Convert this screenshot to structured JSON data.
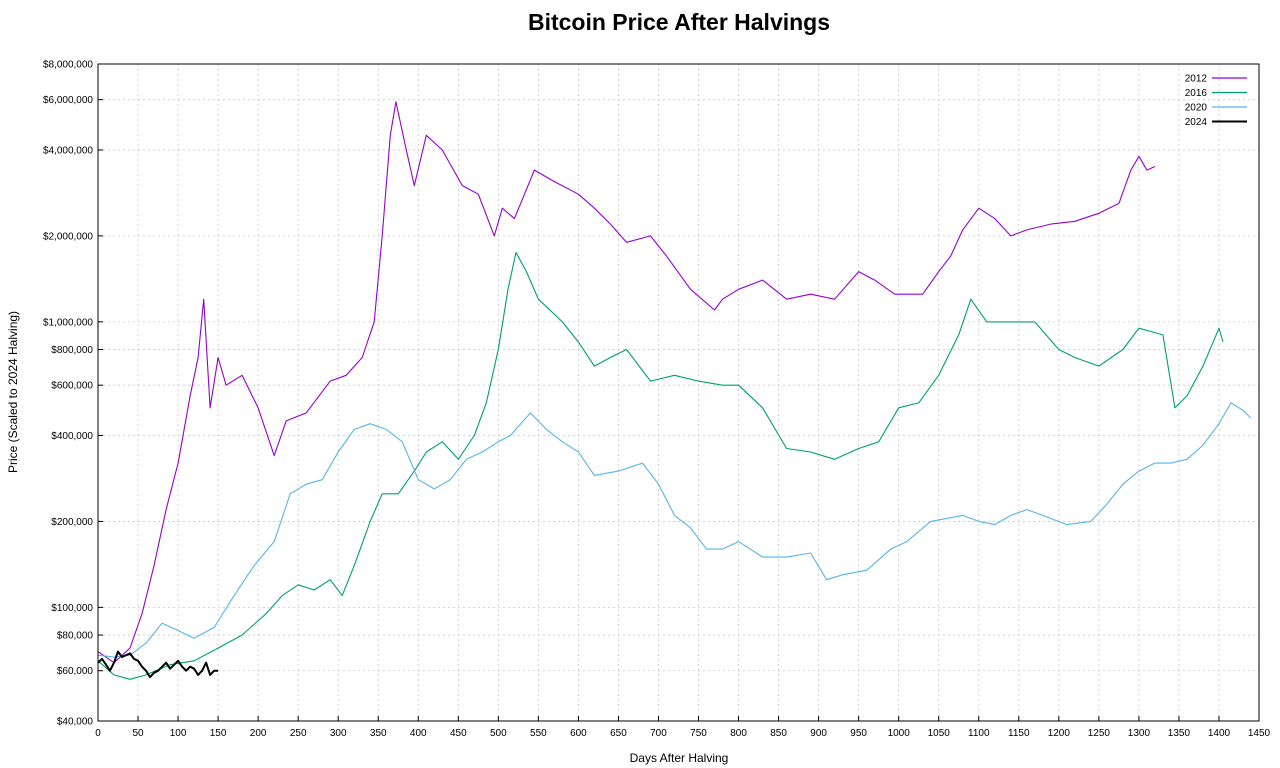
{
  "chart_data": {
    "type": "line",
    "title": "Bitcoin Price After Halvings",
    "xlabel": "Days After Halving",
    "ylabel": "Price (Scaled to 2024 Halving)",
    "y_scale": "log",
    "xlim": [
      0,
      1450
    ],
    "ylim": [
      40000,
      8000000
    ],
    "x_ticks": [
      0,
      50,
      100,
      150,
      200,
      250,
      300,
      350,
      400,
      450,
      500,
      550,
      600,
      650,
      700,
      750,
      800,
      850,
      900,
      950,
      1000,
      1050,
      1100,
      1150,
      1200,
      1250,
      1300,
      1350,
      1400,
      1450
    ],
    "y_ticks": [
      {
        "value": 40000,
        "label": "$40,000"
      },
      {
        "value": 60000,
        "label": "$60,000"
      },
      {
        "value": 80000,
        "label": "$80,000"
      },
      {
        "value": 100000,
        "label": "$100,000"
      },
      {
        "value": 200000,
        "label": "$200,000"
      },
      {
        "value": 400000,
        "label": "$400,000"
      },
      {
        "value": 600000,
        "label": "$600,000"
      },
      {
        "value": 800000,
        "label": "$800,000"
      },
      {
        "value": 1000000,
        "label": "$1,000,000"
      },
      {
        "value": 2000000,
        "label": "$2,000,000"
      },
      {
        "value": 4000000,
        "label": "$4,000,000"
      },
      {
        "value": 6000000,
        "label": "$6,000,000"
      },
      {
        "value": 8000000,
        "label": "$8,000,000"
      }
    ],
    "grid": true,
    "legend_position": "top-right",
    "series": [
      {
        "name": "2012",
        "color": "#9400d3",
        "points": [
          [
            0,
            70000
          ],
          [
            20,
            64000
          ],
          [
            40,
            72000
          ],
          [
            55,
            95000
          ],
          [
            70,
            140000
          ],
          [
            85,
            220000
          ],
          [
            100,
            320000
          ],
          [
            115,
            550000
          ],
          [
            125,
            750000
          ],
          [
            132,
            1200000
          ],
          [
            140,
            500000
          ],
          [
            150,
            750000
          ],
          [
            160,
            600000
          ],
          [
            180,
            650000
          ],
          [
            200,
            500000
          ],
          [
            220,
            340000
          ],
          [
            235,
            450000
          ],
          [
            260,
            480000
          ],
          [
            290,
            620000
          ],
          [
            310,
            650000
          ],
          [
            330,
            750000
          ],
          [
            345,
            1000000
          ],
          [
            355,
            2000000
          ],
          [
            365,
            4500000
          ],
          [
            372,
            5900000
          ],
          [
            385,
            4000000
          ],
          [
            395,
            3000000
          ],
          [
            410,
            4500000
          ],
          [
            430,
            4000000
          ],
          [
            455,
            3000000
          ],
          [
            475,
            2800000
          ],
          [
            495,
            2000000
          ],
          [
            505,
            2500000
          ],
          [
            520,
            2300000
          ],
          [
            545,
            3400000
          ],
          [
            570,
            3100000
          ],
          [
            600,
            2800000
          ],
          [
            620,
            2500000
          ],
          [
            640,
            2200000
          ],
          [
            660,
            1900000
          ],
          [
            690,
            2000000
          ],
          [
            710,
            1700000
          ],
          [
            740,
            1300000
          ],
          [
            770,
            1100000
          ],
          [
            780,
            1200000
          ],
          [
            800,
            1300000
          ],
          [
            830,
            1400000
          ],
          [
            860,
            1200000
          ],
          [
            890,
            1250000
          ],
          [
            920,
            1200000
          ],
          [
            950,
            1500000
          ],
          [
            970,
            1400000
          ],
          [
            995,
            1250000
          ],
          [
            1030,
            1250000
          ],
          [
            1050,
            1500000
          ],
          [
            1065,
            1700000
          ],
          [
            1080,
            2100000
          ],
          [
            1100,
            2500000
          ],
          [
            1120,
            2300000
          ],
          [
            1140,
            2000000
          ],
          [
            1160,
            2100000
          ],
          [
            1190,
            2200000
          ],
          [
            1220,
            2250000
          ],
          [
            1250,
            2400000
          ],
          [
            1275,
            2600000
          ],
          [
            1290,
            3400000
          ],
          [
            1300,
            3800000
          ],
          [
            1310,
            3400000
          ],
          [
            1320,
            3500000
          ]
        ]
      },
      {
        "name": "2016",
        "color": "#009e73",
        "points": [
          [
            0,
            65000
          ],
          [
            20,
            58000
          ],
          [
            40,
            56000
          ],
          [
            60,
            58000
          ],
          [
            90,
            63000
          ],
          [
            120,
            65000
          ],
          [
            150,
            72000
          ],
          [
            180,
            80000
          ],
          [
            210,
            95000
          ],
          [
            230,
            110000
          ],
          [
            250,
            120000
          ],
          [
            270,
            115000
          ],
          [
            290,
            125000
          ],
          [
            305,
            110000
          ],
          [
            320,
            140000
          ],
          [
            340,
            200000
          ],
          [
            355,
            250000
          ],
          [
            375,
            250000
          ],
          [
            395,
            300000
          ],
          [
            410,
            350000
          ],
          [
            430,
            380000
          ],
          [
            450,
            330000
          ],
          [
            470,
            400000
          ],
          [
            485,
            520000
          ],
          [
            500,
            800000
          ],
          [
            512,
            1300000
          ],
          [
            522,
            1750000
          ],
          [
            535,
            1500000
          ],
          [
            550,
            1200000
          ],
          [
            580,
            1000000
          ],
          [
            600,
            850000
          ],
          [
            620,
            700000
          ],
          [
            640,
            750000
          ],
          [
            660,
            800000
          ],
          [
            690,
            620000
          ],
          [
            720,
            650000
          ],
          [
            750,
            620000
          ],
          [
            780,
            600000
          ],
          [
            800,
            600000
          ],
          [
            830,
            500000
          ],
          [
            860,
            360000
          ],
          [
            890,
            350000
          ],
          [
            920,
            330000
          ],
          [
            950,
            360000
          ],
          [
            975,
            380000
          ],
          [
            1000,
            500000
          ],
          [
            1025,
            520000
          ],
          [
            1050,
            650000
          ],
          [
            1075,
            900000
          ],
          [
            1090,
            1200000
          ],
          [
            1110,
            1000000
          ],
          [
            1140,
            1000000
          ],
          [
            1170,
            1000000
          ],
          [
            1200,
            800000
          ],
          [
            1220,
            750000
          ],
          [
            1250,
            700000
          ],
          [
            1280,
            800000
          ],
          [
            1300,
            950000
          ],
          [
            1330,
            900000
          ],
          [
            1345,
            500000
          ],
          [
            1360,
            550000
          ],
          [
            1380,
            700000
          ],
          [
            1400,
            950000
          ],
          [
            1405,
            850000
          ]
        ]
      },
      {
        "name": "2020",
        "color": "#56b4e9",
        "points": [
          [
            0,
            68000
          ],
          [
            20,
            67000
          ],
          [
            40,
            68000
          ],
          [
            60,
            75000
          ],
          [
            80,
            88000
          ],
          [
            100,
            83000
          ],
          [
            120,
            78000
          ],
          [
            145,
            85000
          ],
          [
            170,
            110000
          ],
          [
            195,
            140000
          ],
          [
            220,
            170000
          ],
          [
            240,
            250000
          ],
          [
            260,
            270000
          ],
          [
            280,
            280000
          ],
          [
            300,
            350000
          ],
          [
            320,
            420000
          ],
          [
            340,
            440000
          ],
          [
            360,
            420000
          ],
          [
            380,
            380000
          ],
          [
            400,
            280000
          ],
          [
            420,
            260000
          ],
          [
            440,
            280000
          ],
          [
            460,
            330000
          ],
          [
            480,
            350000
          ],
          [
            500,
            380000
          ],
          [
            515,
            400000
          ],
          [
            540,
            480000
          ],
          [
            560,
            420000
          ],
          [
            580,
            380000
          ],
          [
            600,
            350000
          ],
          [
            620,
            290000
          ],
          [
            650,
            300000
          ],
          [
            680,
            320000
          ],
          [
            700,
            270000
          ],
          [
            720,
            210000
          ],
          [
            740,
            190000
          ],
          [
            760,
            160000
          ],
          [
            780,
            160000
          ],
          [
            800,
            170000
          ],
          [
            830,
            150000
          ],
          [
            860,
            150000
          ],
          [
            890,
            155000
          ],
          [
            910,
            125000
          ],
          [
            930,
            130000
          ],
          [
            960,
            135000
          ],
          [
            990,
            160000
          ],
          [
            1010,
            170000
          ],
          [
            1040,
            200000
          ],
          [
            1060,
            205000
          ],
          [
            1080,
            210000
          ],
          [
            1100,
            200000
          ],
          [
            1120,
            195000
          ],
          [
            1140,
            210000
          ],
          [
            1160,
            220000
          ],
          [
            1180,
            210000
          ],
          [
            1210,
            195000
          ],
          [
            1240,
            200000
          ],
          [
            1260,
            230000
          ],
          [
            1280,
            270000
          ],
          [
            1300,
            300000
          ],
          [
            1320,
            320000
          ],
          [
            1340,
            320000
          ],
          [
            1360,
            330000
          ],
          [
            1380,
            370000
          ],
          [
            1400,
            440000
          ],
          [
            1415,
            520000
          ],
          [
            1430,
            490000
          ],
          [
            1440,
            460000
          ]
        ]
      },
      {
        "name": "2024",
        "color": "#000000",
        "points": [
          [
            0,
            64000
          ],
          [
            5,
            66000
          ],
          [
            10,
            63000
          ],
          [
            15,
            60000
          ],
          [
            20,
            64000
          ],
          [
            25,
            70000
          ],
          [
            30,
            67000
          ],
          [
            35,
            68000
          ],
          [
            40,
            69000
          ],
          [
            45,
            66000
          ],
          [
            50,
            65000
          ],
          [
            55,
            62000
          ],
          [
            60,
            60000
          ],
          [
            65,
            57000
          ],
          [
            70,
            59000
          ],
          [
            75,
            60000
          ],
          [
            80,
            62000
          ],
          [
            85,
            64000
          ],
          [
            90,
            61000
          ],
          [
            95,
            63000
          ],
          [
            100,
            65000
          ],
          [
            105,
            62000
          ],
          [
            110,
            60000
          ],
          [
            115,
            62000
          ],
          [
            120,
            61000
          ],
          [
            125,
            58000
          ],
          [
            130,
            60000
          ],
          [
            135,
            64000
          ],
          [
            140,
            58000
          ],
          [
            145,
            60000
          ],
          [
            150,
            60000
          ]
        ]
      }
    ]
  }
}
